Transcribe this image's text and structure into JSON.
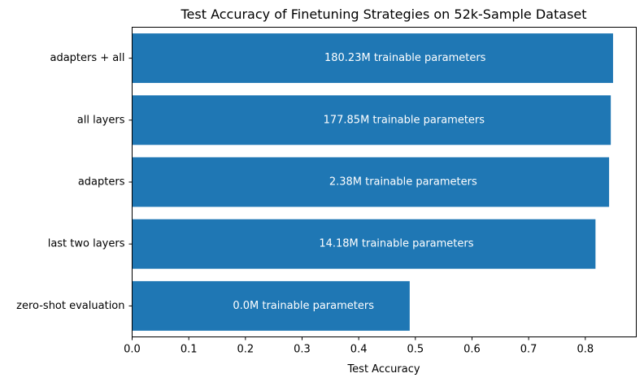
{
  "chart_data": {
    "type": "bar",
    "orientation": "horizontal",
    "title": "Test Accuracy of Finetuning Strategies on 52k-Sample Dataset",
    "xlabel": "Test Accuracy",
    "ylabel": "",
    "xlim": [
      0,
      0.89
    ],
    "x_ticks": [
      "0.0",
      "0.1",
      "0.2",
      "0.3",
      "0.4",
      "0.5",
      "0.6",
      "0.7",
      "0.8"
    ],
    "grid": false,
    "bar_color": "#1f77b4",
    "label_color": "#ffffff",
    "categories": [
      "adapters + all",
      "all layers",
      "adapters",
      "last two layers",
      "zero-shot evaluation"
    ],
    "values": [
      0.849,
      0.845,
      0.842,
      0.818,
      0.49
    ],
    "bar_labels": [
      "180.23M trainable parameters",
      "177.85M trainable parameters",
      "2.38M trainable parameters",
      "14.18M trainable parameters",
      "0.0M trainable parameters"
    ]
  }
}
